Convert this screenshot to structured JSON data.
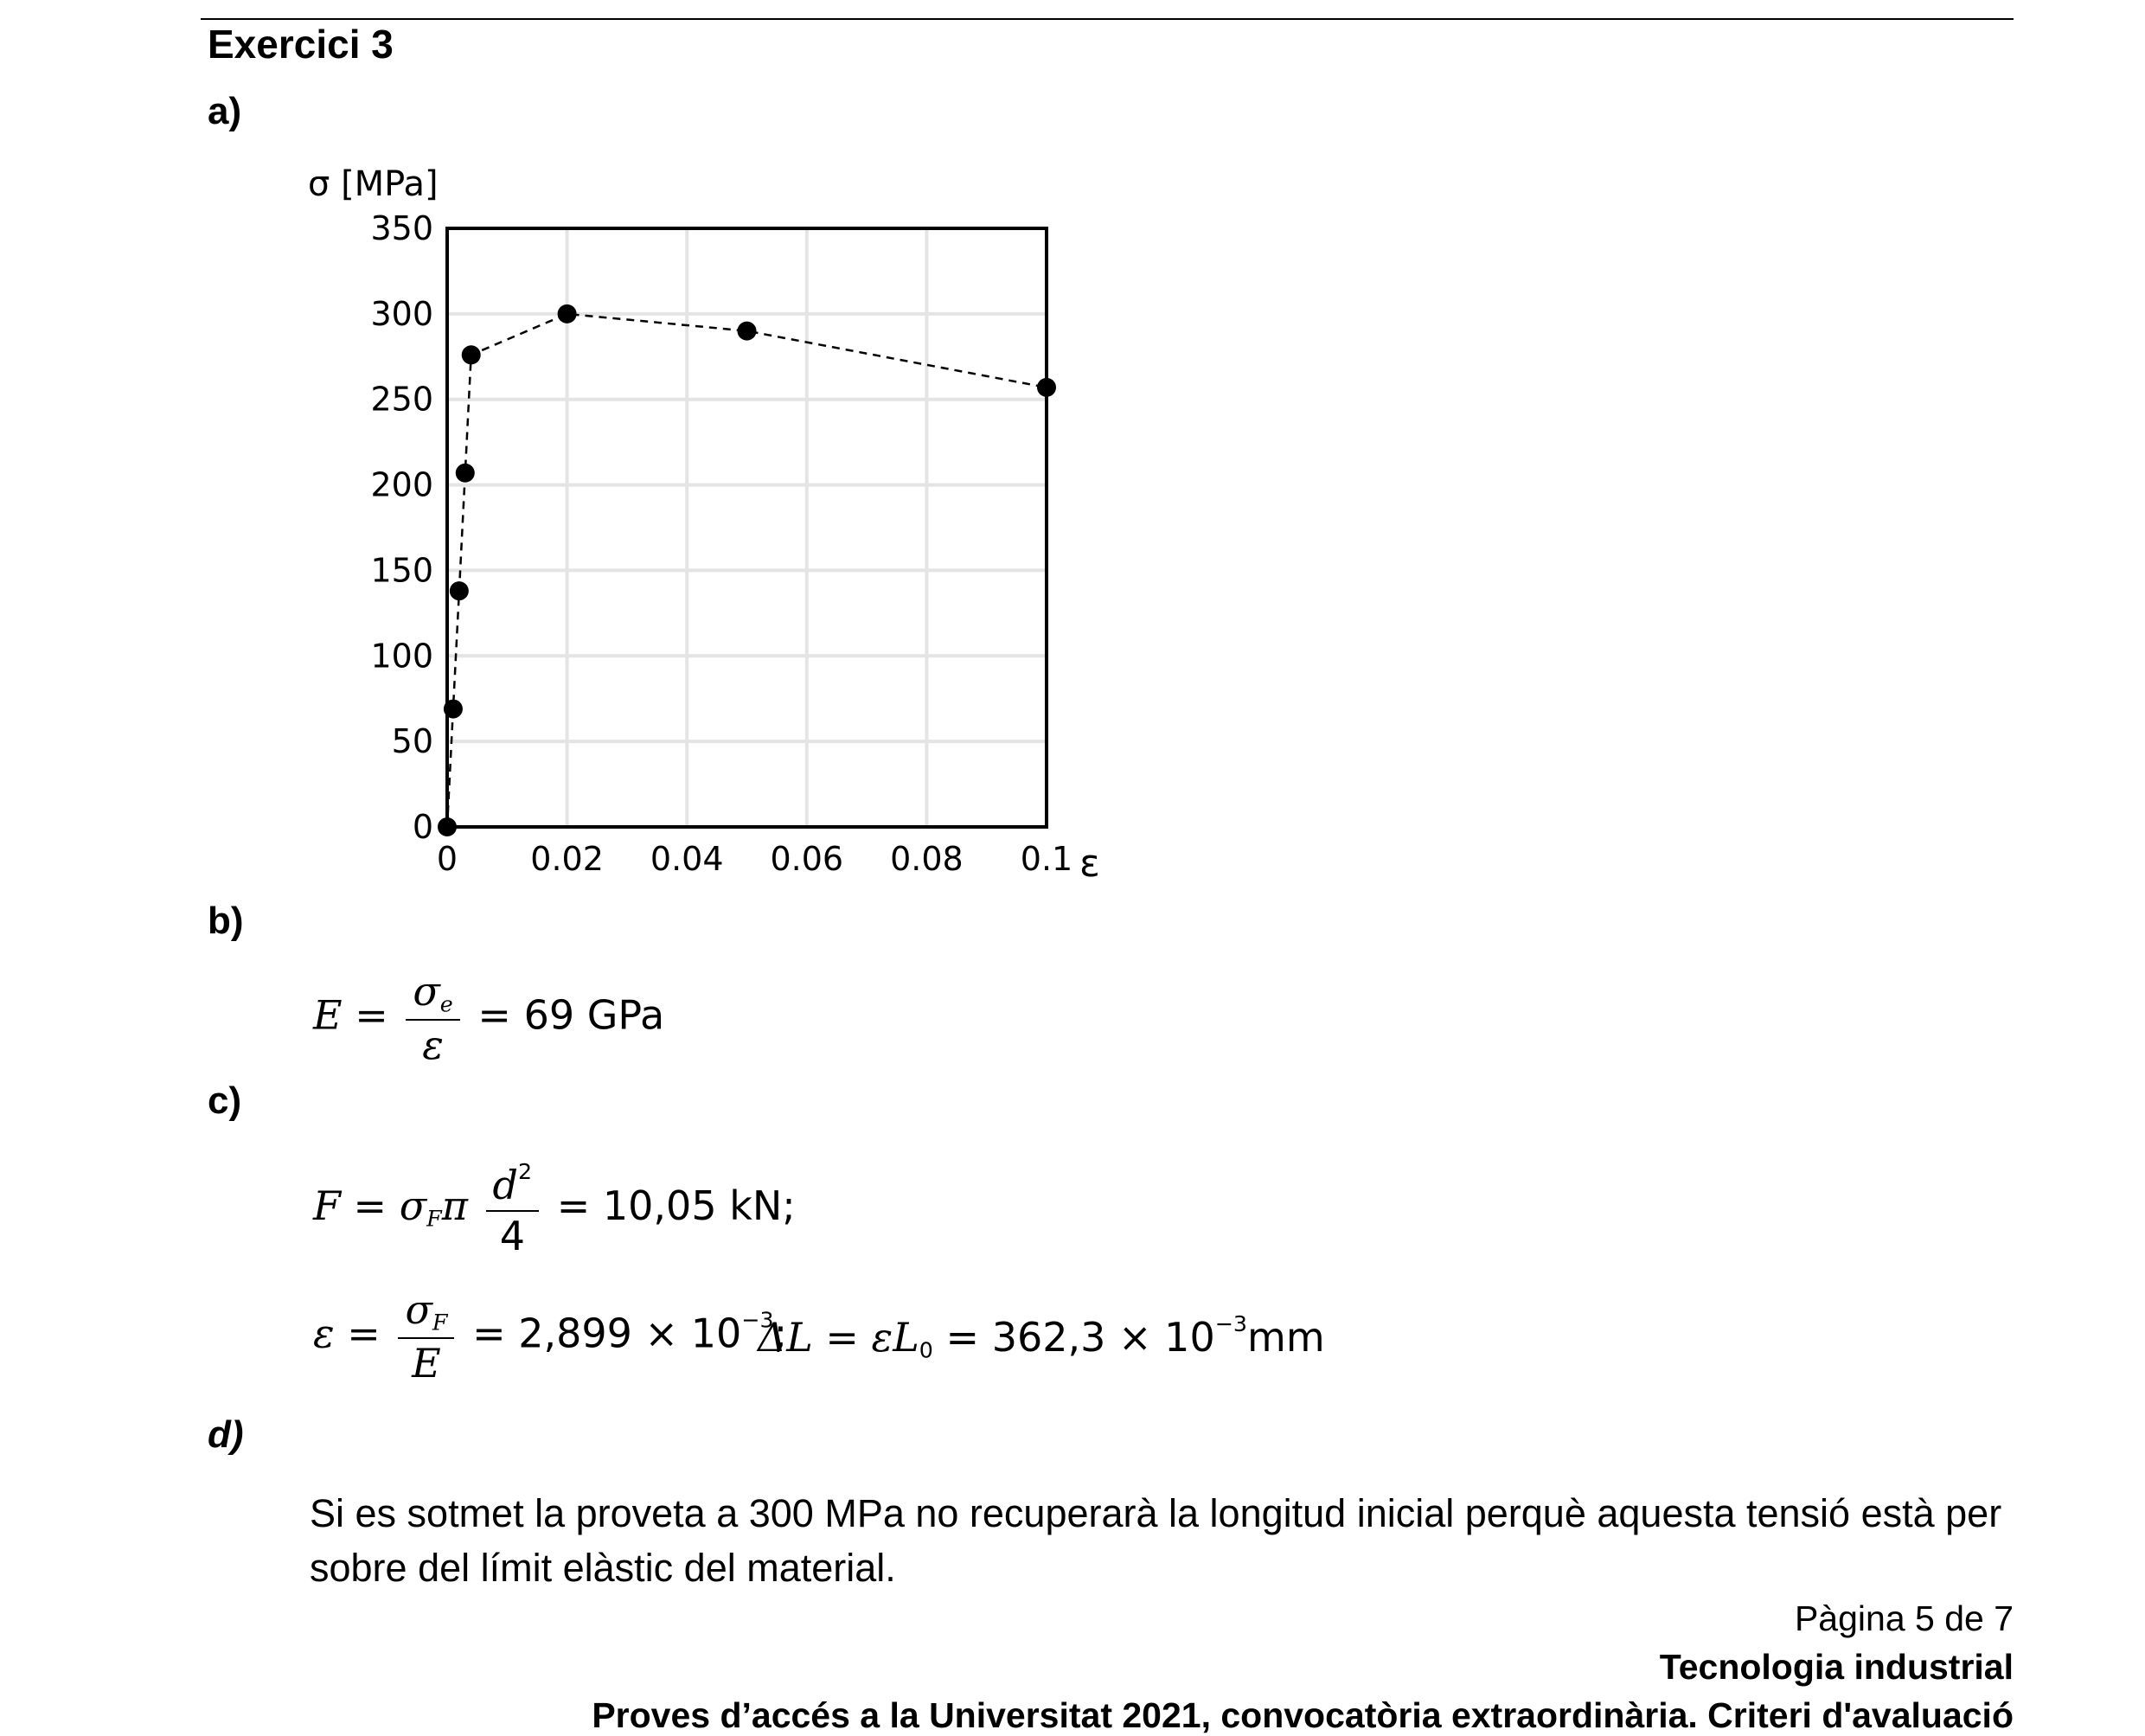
{
  "header": {
    "title": "Exercici 3"
  },
  "sections": {
    "a": "a)",
    "b": "b)",
    "c": "c)",
    "d": "d)"
  },
  "chart_data": {
    "type": "scatter",
    "ylabel": "σ [MPa]",
    "xlabel": "ε",
    "xlim": [
      0,
      0.1
    ],
    "ylim": [
      0,
      350
    ],
    "xticks": [
      "0",
      "0.02",
      "0.04",
      "0.06",
      "0.08",
      "0.1"
    ],
    "xtick_values": [
      0,
      0.02,
      0.04,
      0.06,
      0.08,
      0.1
    ],
    "yticks": [
      "0",
      "50",
      "100",
      "150",
      "200",
      "250",
      "300",
      "350"
    ],
    "ytick_values": [
      0,
      50,
      100,
      150,
      200,
      250,
      300,
      350
    ],
    "grid": true,
    "series": [
      {
        "connected_by": "dashed-line",
        "points": [
          {
            "x": 0,
            "y": 0
          },
          {
            "x": 0.001,
            "y": 69
          },
          {
            "x": 0.002,
            "y": 138
          },
          {
            "x": 0.003,
            "y": 207
          },
          {
            "x": 0.004,
            "y": 276
          },
          {
            "x": 0.02,
            "y": 300
          },
          {
            "x": 0.05,
            "y": 290
          },
          {
            "x": 0.1,
            "y": 257
          }
        ]
      }
    ]
  },
  "equations": {
    "b": {
      "lhs": "E",
      "num": "σ",
      "num_sub": "e",
      "den": "ε",
      "result": "= 69 GPa"
    },
    "c1": {
      "lhs": "F",
      "sigma": "σ",
      "sigma_sub": "F",
      "pi": "π",
      "num": "d",
      "num_sup": "2",
      "den": "4",
      "result": "= 10,05 kN;"
    },
    "c2": {
      "lhs": "ε",
      "num": "σ",
      "num_sub": "F",
      "den": "E",
      "result": "= 2,899 × 10",
      "exp": "−3",
      "tail": ";"
    },
    "c3": {
      "lhs": "ΔL = εL",
      "lhs_sub": "0",
      "result": "= 362,3 × 10",
      "exp": "−3",
      "unit": "mm"
    }
  },
  "answer_d": "Si es sotmet la proveta a 300 MPa no recuperarà la longitud inicial perquè aquesta tensió està per sobre del límit elàstic del material.",
  "footer": {
    "page": "Pàgina 5 de 7",
    "subject": "Tecnologia industrial",
    "exam": "Proves d’accés a la Universitat 2021, convocatòria extraordinària. Criteri d'avaluació"
  }
}
